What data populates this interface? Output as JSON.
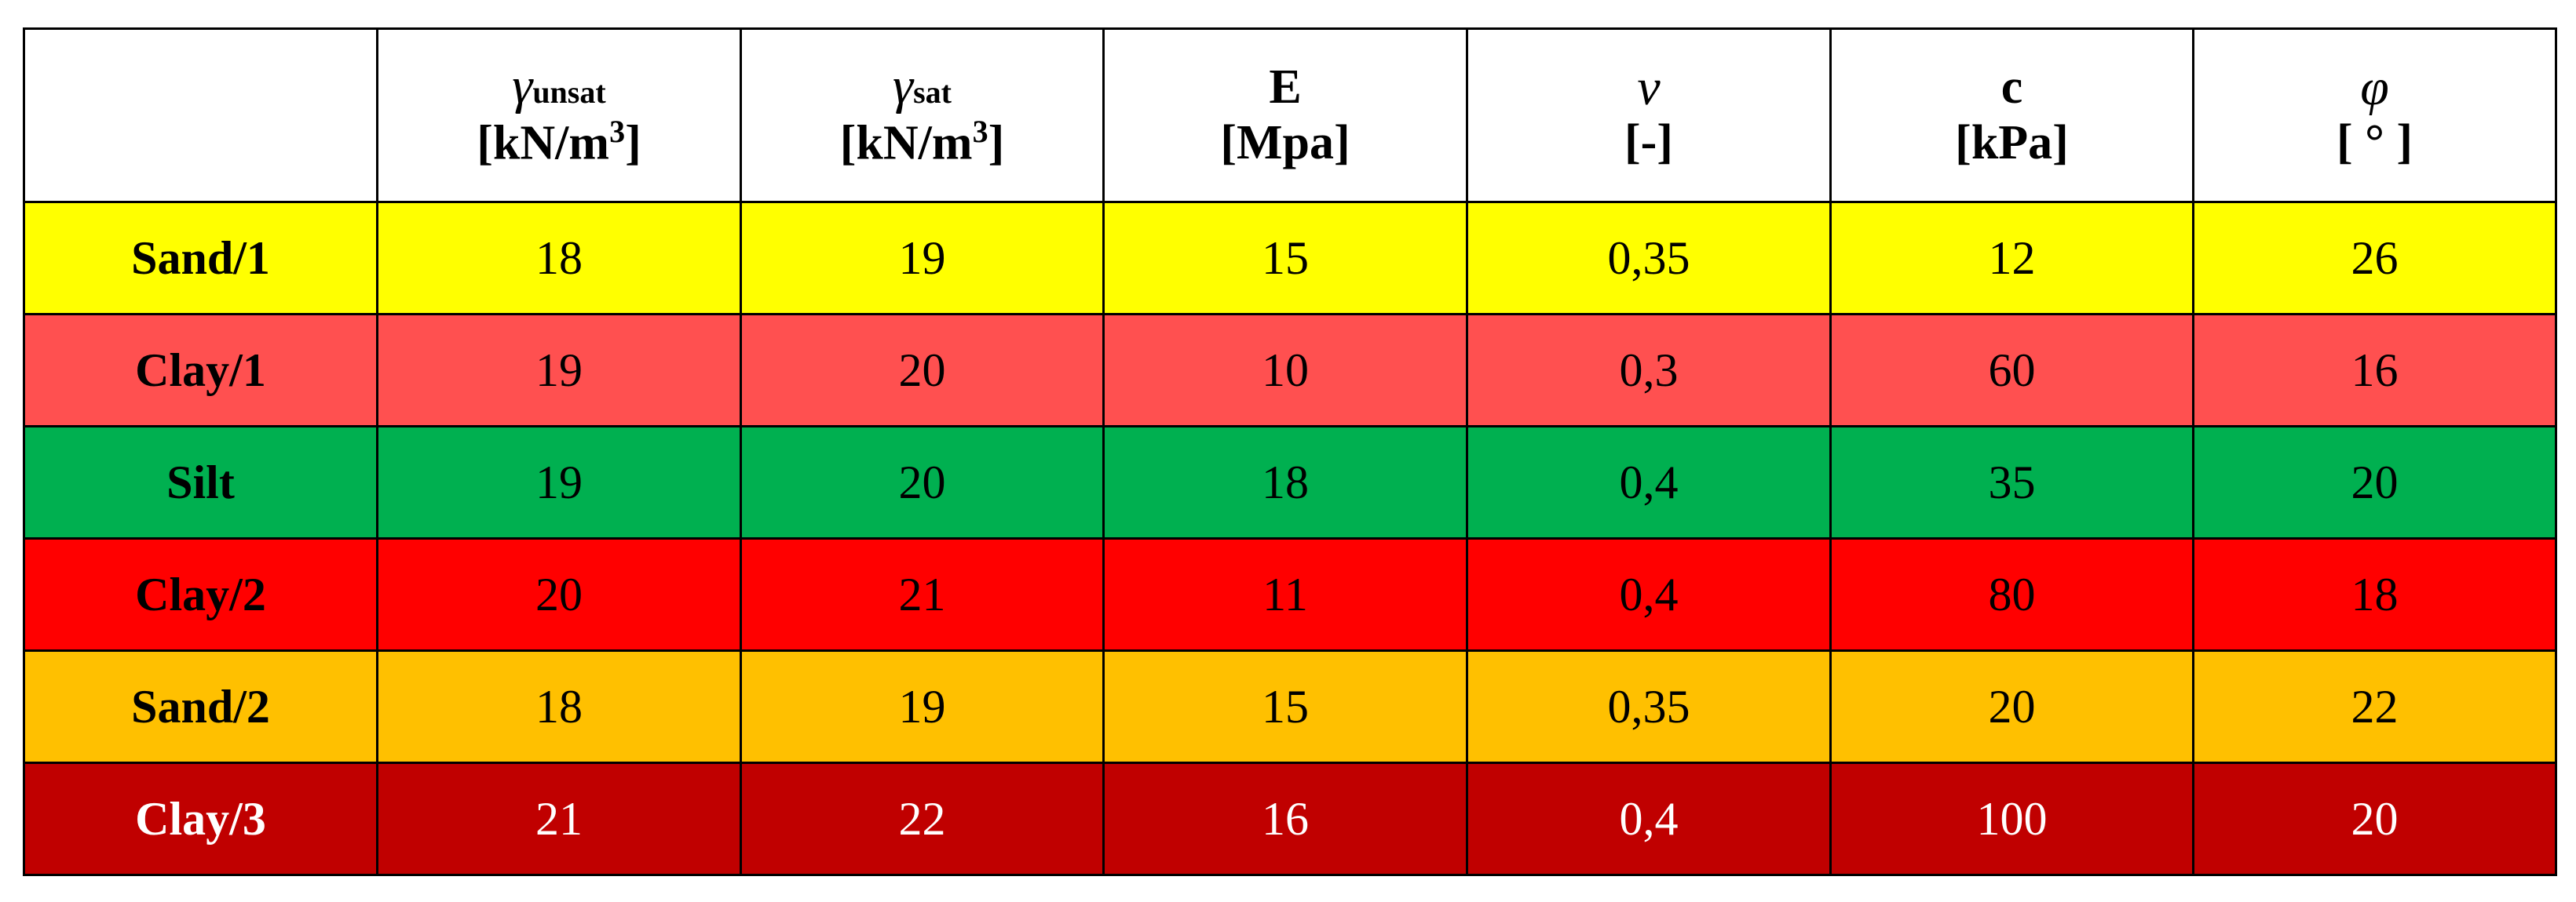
{
  "header": {
    "corner": "",
    "columns": [
      {
        "symbol": "γ",
        "subscript": "unsat",
        "unit_base": "[kN/m",
        "unit_sup": "3",
        "unit_end": "]"
      },
      {
        "symbol": "γ",
        "subscript": "sat",
        "unit_base": "[kN/m",
        "unit_sup": "3",
        "unit_end": "]"
      },
      {
        "symbol": "E",
        "unit_base": "[Mpa]"
      },
      {
        "symbol": "ν",
        "unit_base": "[-]"
      },
      {
        "symbol": "c",
        "unit_base": "[kPa]"
      },
      {
        "symbol": "φ",
        "unit_base": "[ ° ]"
      }
    ]
  },
  "rows": [
    {
      "name": "Sand/1",
      "bg": "#FFFF00",
      "fg": "#000000",
      "values": [
        "18",
        "19",
        "15",
        "0,35",
        "12",
        "26"
      ]
    },
    {
      "name": "Clay/1",
      "bg": "#FF5050",
      "fg": "#000000",
      "values": [
        "19",
        "20",
        "10",
        "0,3",
        "60",
        "16"
      ]
    },
    {
      "name": "Silt",
      "bg": "#00B050",
      "fg": "#000000",
      "values": [
        "19",
        "20",
        "18",
        "0,4",
        "35",
        "20"
      ]
    },
    {
      "name": "Clay/2",
      "bg": "#FF0000",
      "fg": "#000000",
      "values": [
        "20",
        "21",
        "11",
        "0,4",
        "80",
        "18"
      ]
    },
    {
      "name": "Sand/2",
      "bg": "#FFC000",
      "fg": "#000000",
      "values": [
        "18",
        "19",
        "15",
        "0,35",
        "20",
        "22"
      ]
    },
    {
      "name": "Clay/3",
      "bg": "#C00000",
      "fg": "#FFFFFF",
      "values": [
        "21",
        "22",
        "16",
        "0,4",
        "100",
        "20"
      ]
    }
  ]
}
